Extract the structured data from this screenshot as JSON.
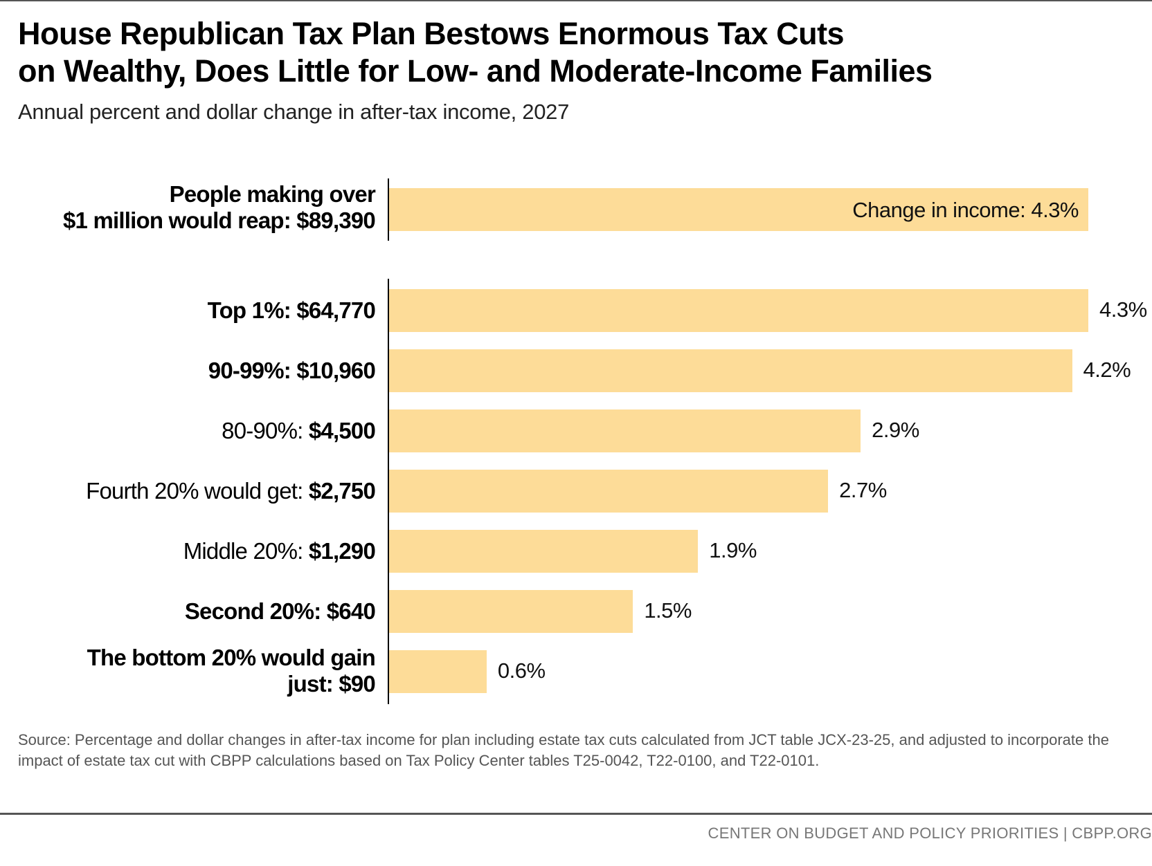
{
  "title": [
    "House Republican Tax Plan Bestows Enormous Tax Cuts",
    "on Wealthy, Does Little for Low- and Moderate-Income Families"
  ],
  "subtitle": "Annual percent and dollar change in after-tax income, 2027",
  "chart_data": {
    "type": "bar",
    "orientation": "horizontal",
    "title": "House Republican Tax Plan Bestows Enormous Tax Cuts on Wealthy, Does Little for Low- and Moderate-Income Families",
    "subtitle": "Annual percent and dollar change in after-tax income, 2027",
    "xlim": [
      0,
      4.3
    ],
    "highlight": {
      "label_lines": [
        "People making over",
        "$1 million would reap: $89,390"
      ],
      "value": 4.3,
      "value_label": "Change in income: 4.3%"
    },
    "categories": [
      {
        "prefix": "Top 1%: ",
        "amount": "$64,770",
        "prefix_bold": true,
        "value": 4.3,
        "value_label": "4.3%"
      },
      {
        "prefix": "90-99%: ",
        "amount": "$10,960",
        "prefix_bold": true,
        "value": 4.2,
        "value_label": "4.2%"
      },
      {
        "prefix": "80-90%: ",
        "amount": "$4,500",
        "prefix_bold": false,
        "value": 2.9,
        "value_label": "2.9%"
      },
      {
        "prefix": "Fourth 20% would get: ",
        "amount": "$2,750",
        "prefix_bold": false,
        "value": 2.7,
        "value_label": "2.7%"
      },
      {
        "prefix": "Middle 20%: ",
        "amount": "$1,290",
        "prefix_bold": false,
        "value": 1.9,
        "value_label": "1.9%"
      },
      {
        "prefix": "Second 20%: ",
        "amount": "$640",
        "prefix_bold": true,
        "value": 1.5,
        "value_label": "1.5%"
      },
      {
        "prefix": "The bottom 20% would gain just: ",
        "amount": "$90",
        "prefix_bold": true,
        "value": 0.6,
        "value_label": "0.6%"
      }
    ],
    "colors": {
      "bar": "#fddc98"
    }
  },
  "source": "Source: Percentage and dollar changes in after-tax income for plan including estate tax cuts calculated from JCT table JCX-23-25, and adjusted to incorporate the impact of estate tax cut with CBPP calculations based on Tax Policy Center tables T25-0042, T22-0100, and T22-0101.",
  "credit": "CENTER ON BUDGET AND POLICY PRIORITIES | CBPP.ORG"
}
